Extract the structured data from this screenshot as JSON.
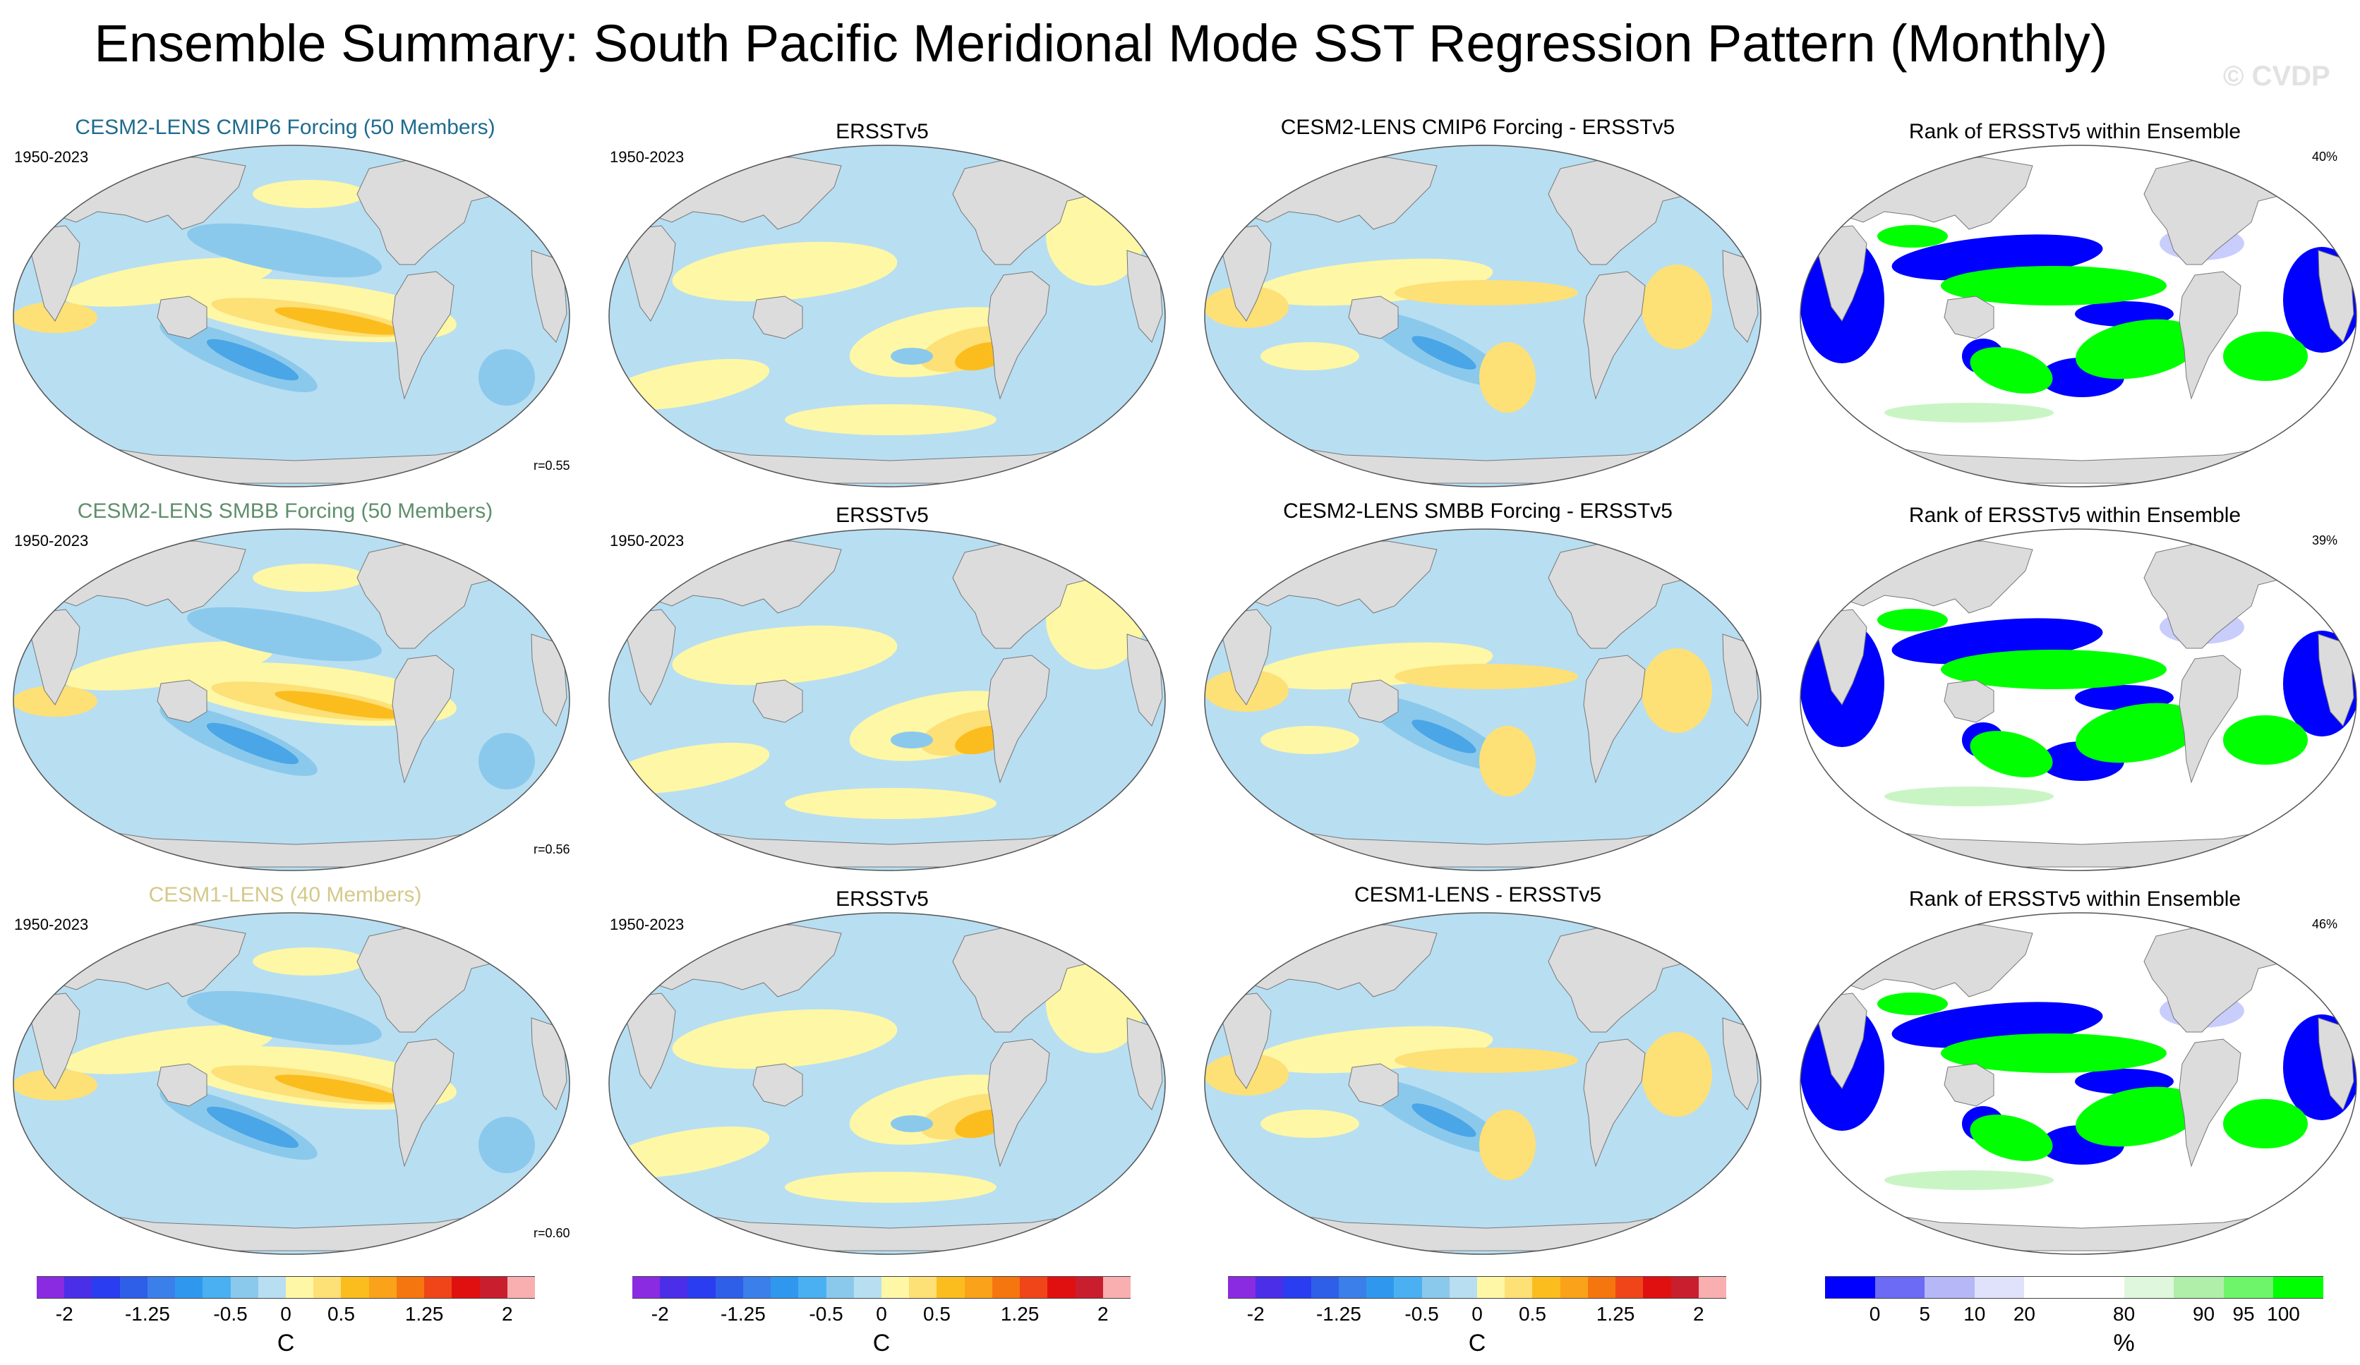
{
  "title": "Ensemble Summary: South Pacific Meridional Mode SST Regression Pattern (Monthly)",
  "watermark": "© CVDP",
  "colors": {
    "ocean_neg_light": "#b8def2",
    "ocean_neg_mid": "#8bc9ec",
    "ocean_neg_strong": "#4aa6e6",
    "ocean_pos_light": "#fdf7a6",
    "ocean_pos_mid": "#fde076",
    "ocean_pos_strong": "#fbbd1e",
    "land": "#dcdcdc",
    "rank_blue": "#0000ff",
    "rank_green": "#00ff00",
    "rank_light_blue": "#c9cdfb",
    "rank_light_green": "#c9f5c5",
    "model_title_1": "#1e6b8f",
    "model_title_2": "#5f8f6c",
    "model_title_3": "#d4c98a"
  },
  "rows": [
    {
      "model_title": "CESM2-LENS CMIP6 Forcing (50 Members)",
      "period": "1950-2023",
      "correlation": "r=0.55",
      "obs_title": "ERSSTv5",
      "obs_period": "1950-2023",
      "diff_title": "CESM2-LENS CMIP6 Forcing - ERSSTv5",
      "rank_title": "Rank of ERSSTv5 within Ensemble",
      "rank_percent": "40%"
    },
    {
      "model_title": "CESM2-LENS SMBB Forcing (50 Members)",
      "period": "1950-2023",
      "correlation": "r=0.56",
      "obs_title": "ERSSTv5",
      "obs_period": "1950-2023",
      "diff_title": "CESM2-LENS SMBB Forcing - ERSSTv5",
      "rank_title": "Rank of ERSSTv5 within Ensemble",
      "rank_percent": "39%"
    },
    {
      "model_title": "CESM1-LENS (40 Members)",
      "period": "1950-2023",
      "correlation": "r=0.60",
      "obs_title": "ERSSTv5",
      "obs_period": "1950-2023",
      "diff_title": "CESM1-LENS - ERSSTv5",
      "rank_title": "Rank of ERSSTv5 within Ensemble",
      "rank_percent": "46%"
    }
  ],
  "chart_data": {
    "type": "heatmap",
    "projection": "global map",
    "sst_colorbar": {
      "unit": "C",
      "range": [
        -2,
        2
      ],
      "levels": [
        -2,
        -1.75,
        -1.5,
        -1.25,
        -1,
        -0.75,
        -0.5,
        -0.25,
        0,
        0.25,
        0.5,
        0.75,
        1,
        1.25,
        1.5,
        1.75,
        2
      ],
      "tick_labels": [
        "-2",
        "-1.25",
        "-0.5",
        "0",
        "0.5",
        "1.25",
        "2"
      ],
      "tick_values": [
        -2,
        -1.25,
        -0.5,
        0,
        0.5,
        1.25,
        2
      ],
      "colors": [
        "#8a2be2",
        "#4b2ee8",
        "#2a3df0",
        "#2e5fe8",
        "#3a7fea",
        "#2f98ee",
        "#4ab0f2",
        "#8bc9ec",
        "#b8def2",
        "#fdf7a6",
        "#fde076",
        "#fbbd1e",
        "#f9a21a",
        "#f5760e",
        "#ef4518",
        "#e01010",
        "#c81e2e",
        "#f9aeb0"
      ]
    },
    "rank_colorbar": {
      "unit": "%",
      "tick_labels": [
        "0",
        "5",
        "10",
        "20",
        "80",
        "90",
        "95",
        "100"
      ],
      "tick_values": [
        0,
        5,
        10,
        20,
        80,
        90,
        95,
        100
      ],
      "colors": [
        "#0000ff",
        "#6b6bf6",
        "#b5b7f6",
        "#e0e1fa",
        "#ffffff",
        "#ffffff",
        "#dff7dc",
        "#b0efaa",
        "#6ef56a",
        "#00ff00"
      ]
    },
    "panels": [
      {
        "row": 1,
        "col": 1,
        "field": "model",
        "pattern": "model"
      },
      {
        "row": 1,
        "col": 2,
        "field": "obs",
        "pattern": "obs"
      },
      {
        "row": 1,
        "col": 3,
        "field": "diff",
        "pattern": "diff"
      },
      {
        "row": 1,
        "col": 4,
        "field": "rank",
        "pattern": "rank"
      },
      {
        "row": 2,
        "col": 1,
        "field": "model",
        "pattern": "model"
      },
      {
        "row": 2,
        "col": 2,
        "field": "obs",
        "pattern": "obs"
      },
      {
        "row": 2,
        "col": 3,
        "field": "diff",
        "pattern": "diff"
      },
      {
        "row": 2,
        "col": 4,
        "field": "rank",
        "pattern": "rank"
      },
      {
        "row": 3,
        "col": 1,
        "field": "model",
        "pattern": "model"
      },
      {
        "row": 3,
        "col": 2,
        "field": "obs",
        "pattern": "obs"
      },
      {
        "row": 3,
        "col": 3,
        "field": "diff",
        "pattern": "diff"
      },
      {
        "row": 3,
        "col": 4,
        "field": "rank",
        "pattern": "rank"
      }
    ]
  }
}
